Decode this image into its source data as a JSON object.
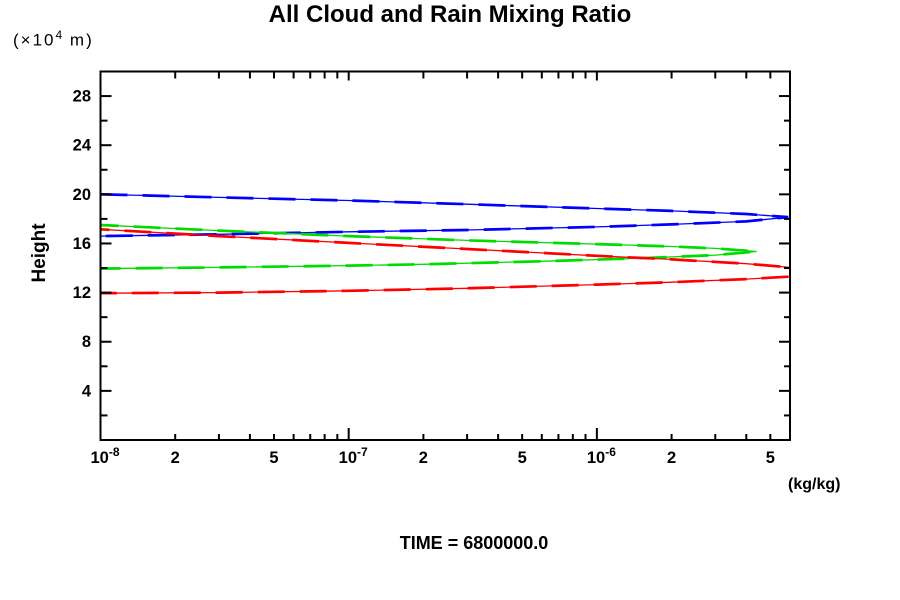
{
  "title": "All Cloud and Rain Mixing Ratio",
  "y_axis": {
    "label": "Height",
    "unit_prefix": "(×10",
    "unit_exponent": "4",
    "unit_suffix": " m)"
  },
  "x_axis": {
    "unit": "(kg/kg)"
  },
  "footer": {
    "time_label": "TIME = 6800000.0"
  },
  "chart_data": {
    "type": "line",
    "title": "All Cloud and Rain Mixing Ratio",
    "xlabel": "(kg/kg)",
    "ylabel": "Height (x10^4 m)",
    "x_scale": "log",
    "x_range": [
      1e-08,
      6e-06
    ],
    "y_range": [
      0,
      30
    ],
    "grid": false,
    "legend": "none",
    "axis_color": "#000000",
    "x_ticks": [
      {
        "v": 1e-08,
        "label": "10",
        "exp": "-8",
        "decade": true
      },
      {
        "v": 2e-08,
        "label": "2"
      },
      {
        "v": 3e-08
      },
      {
        "v": 4e-08
      },
      {
        "v": 5e-08,
        "label": "5"
      },
      {
        "v": 6e-08
      },
      {
        "v": 7e-08
      },
      {
        "v": 8e-08
      },
      {
        "v": 9e-08
      },
      {
        "v": 1e-07,
        "label": "10",
        "exp": "-7",
        "decade": true
      },
      {
        "v": 2e-07,
        "label": "2"
      },
      {
        "v": 3e-07
      },
      {
        "v": 4e-07
      },
      {
        "v": 5e-07,
        "label": "5"
      },
      {
        "v": 6e-07
      },
      {
        "v": 7e-07
      },
      {
        "v": 8e-07
      },
      {
        "v": 9e-07
      },
      {
        "v": 1e-06,
        "label": "10",
        "exp": "-6",
        "decade": true
      },
      {
        "v": 2e-06,
        "label": "2"
      },
      {
        "v": 3e-06
      },
      {
        "v": 4e-06
      },
      {
        "v": 5e-06,
        "label": "5"
      }
    ],
    "y_ticks": {
      "major": [
        4,
        8,
        12,
        16,
        20,
        24,
        28
      ],
      "minor": [
        2,
        6,
        10,
        14,
        18,
        22,
        26
      ]
    },
    "series": [
      {
        "name": "blue-profile",
        "color": "#0000ff",
        "points": [
          [
            1e-08,
            20.0
          ],
          [
            3e-08,
            19.75
          ],
          [
            1e-07,
            19.5
          ],
          [
            3e-07,
            19.2
          ],
          [
            1e-06,
            18.85
          ],
          [
            2e-06,
            18.65
          ],
          [
            4e-06,
            18.4
          ],
          [
            5.9e-06,
            18.15
          ],
          [
            4e-06,
            17.8
          ],
          [
            2e-06,
            17.55
          ],
          [
            1e-06,
            17.35
          ],
          [
            3e-07,
            17.1
          ],
          [
            1e-07,
            16.95
          ],
          [
            3e-08,
            16.75
          ],
          [
            1e-08,
            16.6
          ]
        ]
      },
      {
        "name": "green-profile",
        "color": "#00dc00",
        "points": [
          [
            1e-08,
            17.5
          ],
          [
            3e-08,
            17.05
          ],
          [
            1e-07,
            16.6
          ],
          [
            3e-07,
            16.25
          ],
          [
            1e-06,
            15.95
          ],
          [
            2e-06,
            15.75
          ],
          [
            3e-06,
            15.6
          ],
          [
            4.4e-06,
            15.35
          ],
          [
            3e-06,
            15.05
          ],
          [
            1.5e-06,
            14.8
          ],
          [
            6e-07,
            14.55
          ],
          [
            2e-07,
            14.3
          ],
          [
            1e-07,
            14.2
          ],
          [
            3e-08,
            14.05
          ],
          [
            1e-08,
            13.95
          ]
        ]
      },
      {
        "name": "red-profile",
        "color": "#ff0000",
        "points": [
          [
            1e-08,
            17.15
          ],
          [
            3e-08,
            16.6
          ],
          [
            1e-07,
            16.05
          ],
          [
            3e-07,
            15.55
          ],
          [
            1e-06,
            15.0
          ],
          [
            2e-06,
            14.7
          ],
          [
            4e-06,
            14.35
          ],
          [
            6e-06,
            14.05
          ],
          [
            9e-06,
            13.65
          ],
          [
            6e-06,
            13.3
          ],
          [
            4e-06,
            13.1
          ],
          [
            2e-06,
            12.85
          ],
          [
            1e-06,
            12.65
          ],
          [
            3e-07,
            12.35
          ],
          [
            1e-07,
            12.15
          ],
          [
            3e-08,
            12.0
          ],
          [
            1e-08,
            11.95
          ]
        ]
      }
    ]
  }
}
